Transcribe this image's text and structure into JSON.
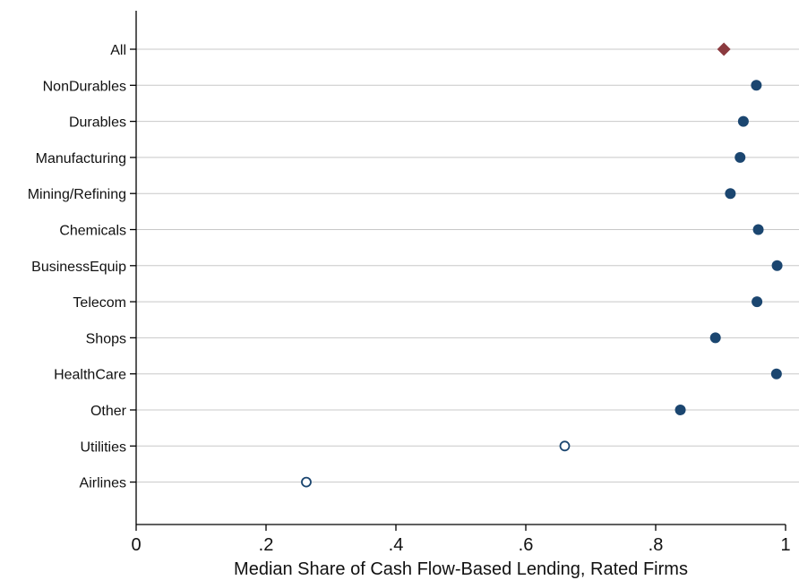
{
  "chart_data": {
    "type": "scatter",
    "xlabel": "Median Share of Cash Flow-Based Lending, Rated Firms",
    "ylabel": "",
    "xlim": [
      0,
      1
    ],
    "x_ticks": [
      "0",
      ".2",
      ".4",
      ".6",
      ".8",
      "1"
    ],
    "x_tick_values": [
      0,
      0.2,
      0.4,
      0.6,
      0.8,
      1
    ],
    "grid": true,
    "categories": [
      "All",
      "NonDurables",
      "Durables",
      "Manufacturing",
      "Mining/Refining",
      "Chemicals",
      "BusinessEquip",
      "Telecom",
      "Shops",
      "HealthCare",
      "Other",
      "Utilities",
      "Airlines"
    ],
    "values": [
      0.905,
      0.955,
      0.935,
      0.93,
      0.915,
      0.958,
      0.987,
      0.956,
      0.892,
      0.986,
      0.838,
      0.66,
      0.262
    ],
    "markers": [
      "diamond",
      "filled",
      "filled",
      "filled",
      "filled",
      "filled",
      "filled",
      "filled",
      "filled",
      "filled",
      "filled",
      "hollow",
      "hollow"
    ],
    "colors": {
      "all_marker": "#8B3A3F",
      "industry_marker": "#1B4670",
      "grid": "#C8C8C8",
      "axis": "#000000"
    }
  }
}
